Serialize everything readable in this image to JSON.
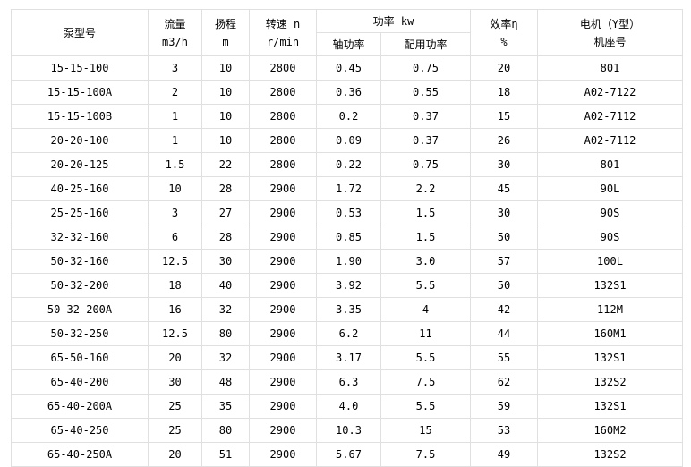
{
  "chart_data": {
    "type": "table",
    "header": {
      "pump_model": "泵型号",
      "flow_line1": "流量",
      "flow_line2": "m3/h",
      "head_line1": "扬程",
      "head_line2": "m",
      "speed_line1": "转速 n",
      "speed_line2": "r/min",
      "power_group": "功率 kw",
      "shaft_power": "轴功率",
      "rated_power": "配用功率",
      "efficiency_line1": "效率η",
      "efficiency_line2": "%",
      "motor_line1": "电机（Y型）",
      "motor_line2": "机座号"
    },
    "columns": [
      "泵型号",
      "流量 m3/h",
      "扬程 m",
      "转速 n r/min",
      "轴功率 kw",
      "配用功率 kw",
      "效率η %",
      "电机（Y型）机座号"
    ],
    "rows": [
      [
        "15-15-100",
        "3",
        "10",
        "2800",
        "0.45",
        "0.75",
        "20",
        "801"
      ],
      [
        "15-15-100A",
        "2",
        "10",
        "2800",
        "0.36",
        "0.55",
        "18",
        "A02-7122"
      ],
      [
        "15-15-100B",
        "1",
        "10",
        "2800",
        "0.2",
        "0.37",
        "15",
        "A02-7112"
      ],
      [
        "20-20-100",
        "1",
        "10",
        "2800",
        "0.09",
        "0.37",
        "26",
        "A02-7112"
      ],
      [
        "20-20-125",
        "1.5",
        "22",
        "2800",
        "0.22",
        "0.75",
        "30",
        "801"
      ],
      [
        "40-25-160",
        "10",
        "28",
        "2900",
        "1.72",
        "2.2",
        "45",
        "90L"
      ],
      [
        "25-25-160",
        "3",
        "27",
        "2900",
        "0.53",
        "1.5",
        "30",
        "90S"
      ],
      [
        "32-32-160",
        "6",
        "28",
        "2900",
        "0.85",
        "1.5",
        "50",
        "90S"
      ],
      [
        "50-32-160",
        "12.5",
        "30",
        "2900",
        "1.90",
        "3.0",
        "57",
        "100L"
      ],
      [
        "50-32-200",
        "18",
        "40",
        "2900",
        "3.92",
        "5.5",
        "50",
        "132S1"
      ],
      [
        "50-32-200A",
        "16",
        "32",
        "2900",
        "3.35",
        "4",
        "42",
        "112M"
      ],
      [
        "50-32-250",
        "12.5",
        "80",
        "2900",
        "6.2",
        "11",
        "44",
        "160M1"
      ],
      [
        "65-50-160",
        "20",
        "32",
        "2900",
        "3.17",
        "5.5",
        "55",
        "132S1"
      ],
      [
        "65-40-200",
        "30",
        "48",
        "2900",
        "6.3",
        "7.5",
        "62",
        "132S2"
      ],
      [
        "65-40-200A",
        "25",
        "35",
        "2900",
        "4.0",
        "5.5",
        "59",
        "132S1"
      ],
      [
        "65-40-250",
        "25",
        "80",
        "2900",
        "10.3",
        "15",
        "53",
        "160M2"
      ],
      [
        "65-40-250A",
        "20",
        "51",
        "2900",
        "5.67",
        "7.5",
        "49",
        "132S2"
      ]
    ]
  },
  "colors": {
    "border": "#e0e0e0",
    "text": "#000000",
    "background": "#ffffff"
  }
}
